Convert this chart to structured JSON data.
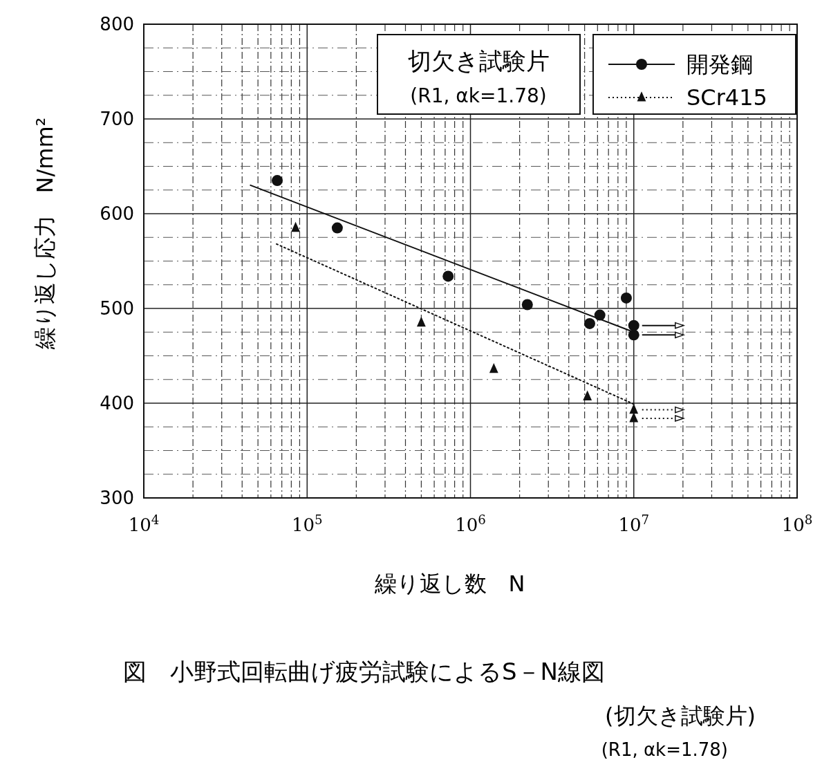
{
  "chart_data": {
    "type": "scatter",
    "title": "図　小野式回転曲げ疲労試験によるS－N線図",
    "subtitle": "(切欠き試験片)",
    "xlabel": "繰り返し数　N",
    "ylabel": "繰り返し応力　N/mm²",
    "log": "x",
    "grid": true,
    "legend": "top right",
    "xlim": [
      10000,
      100000000
    ],
    "ylim": [
      300,
      800
    ],
    "xticks": [
      {
        "value": 10000,
        "label": "10$^{4}$"
      },
      {
        "value": 100000,
        "label": "10$^{5}$"
      },
      {
        "value": 1000000,
        "label": "10$^{6}$"
      },
      {
        "value": 10000000,
        "label": "10$^{7}$"
      },
      {
        "value": 100000000,
        "label": "10$^{8}$"
      }
    ],
    "yticks": [
      300,
      400,
      500,
      600,
      700,
      800
    ],
    "annotations": [
      "切欠き試験片",
      "(R1, αk=1.78)",
      "(R1, αk=1.78)"
    ],
    "series": [
      {
        "name": "開発鋼",
        "marker": "circle",
        "color": "#111111",
        "x": [
          65600,
          153000,
          730000,
          2230000,
          5370000,
          6200000,
          9000000,
          10000000,
          10000000
        ],
        "values": [
          635,
          585,
          534,
          504,
          484,
          493,
          511,
          482,
          472
        ]
      },
      {
        "type": "line",
        "line_style": "solid",
        "color": "#111111",
        "x": [
          45000,
          10000000
        ],
        "values": [
          630,
          475
        ]
      },
      {
        "name": "SCr415",
        "marker": "triangle",
        "color": "#111111",
        "x": [
          85000,
          500000,
          1390000,
          5200000,
          10000000,
          10000000
        ],
        "values": [
          585,
          485,
          436,
          407,
          393,
          384
        ]
      },
      {
        "type": "line",
        "line_style": "dotted",
        "color": "#111111",
        "x": [
          65000,
          10000000
        ],
        "values": [
          568,
          399
        ]
      }
    ]
  }
}
